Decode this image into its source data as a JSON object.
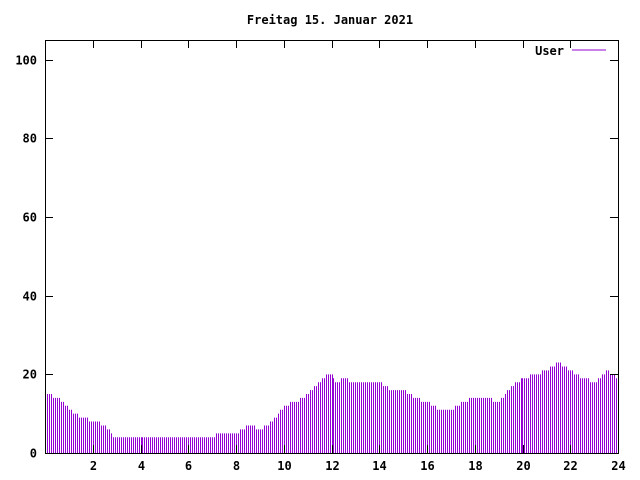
{
  "chart_data": {
    "type": "bar",
    "title": "Freitag 15. Januar 2021",
    "xlabel": "",
    "ylabel": "",
    "xlim": [
      0,
      24
    ],
    "ylim": [
      0,
      105
    ],
    "xticks": [
      2,
      4,
      6,
      8,
      10,
      12,
      14,
      16,
      18,
      20,
      22,
      24
    ],
    "xtick_labels": [
      "2",
      "4",
      "6",
      "8",
      "10",
      "12",
      "14",
      "16",
      "18",
      "20",
      "22",
      "24"
    ],
    "yticks": [
      0,
      20,
      40,
      60,
      80,
      100
    ],
    "ytick_labels": [
      "0",
      "20",
      "40",
      "60",
      "80",
      "100"
    ],
    "grid": false,
    "legend_position": "top-right",
    "series": [
      {
        "name": "User",
        "color": "#9400d3",
        "points": [
          [
            0.0,
            15
          ],
          [
            0.5,
            14
          ],
          [
            1.0,
            11
          ],
          [
            1.5,
            9
          ],
          [
            2.0,
            8
          ],
          [
            2.5,
            7
          ],
          [
            2.9,
            4
          ],
          [
            3.5,
            4
          ],
          [
            4.0,
            4
          ],
          [
            5.0,
            4
          ],
          [
            6.0,
            4
          ],
          [
            7.0,
            4
          ],
          [
            7.2,
            5
          ],
          [
            8.0,
            5
          ],
          [
            8.3,
            6
          ],
          [
            8.5,
            7
          ],
          [
            9.0,
            6
          ],
          [
            9.5,
            8
          ],
          [
            10.0,
            12
          ],
          [
            10.5,
            13
          ],
          [
            11.0,
            15
          ],
          [
            11.5,
            18
          ],
          [
            11.8,
            20
          ],
          [
            12.0,
            20
          ],
          [
            12.2,
            18
          ],
          [
            12.5,
            19
          ],
          [
            13.0,
            18
          ],
          [
            14.0,
            18
          ],
          [
            14.5,
            16
          ],
          [
            15.0,
            16
          ],
          [
            15.5,
            14
          ],
          [
            16.0,
            13
          ],
          [
            16.5,
            11
          ],
          [
            17.0,
            11
          ],
          [
            17.5,
            13
          ],
          [
            18.0,
            14
          ],
          [
            18.5,
            14
          ],
          [
            19.0,
            13
          ],
          [
            19.5,
            17
          ],
          [
            20.0,
            19
          ],
          [
            20.5,
            20
          ],
          [
            21.0,
            21
          ],
          [
            21.5,
            23
          ],
          [
            22.0,
            21
          ],
          [
            22.5,
            19
          ],
          [
            23.0,
            18
          ],
          [
            23.5,
            21
          ],
          [
            24.0,
            19
          ]
        ]
      }
    ]
  }
}
